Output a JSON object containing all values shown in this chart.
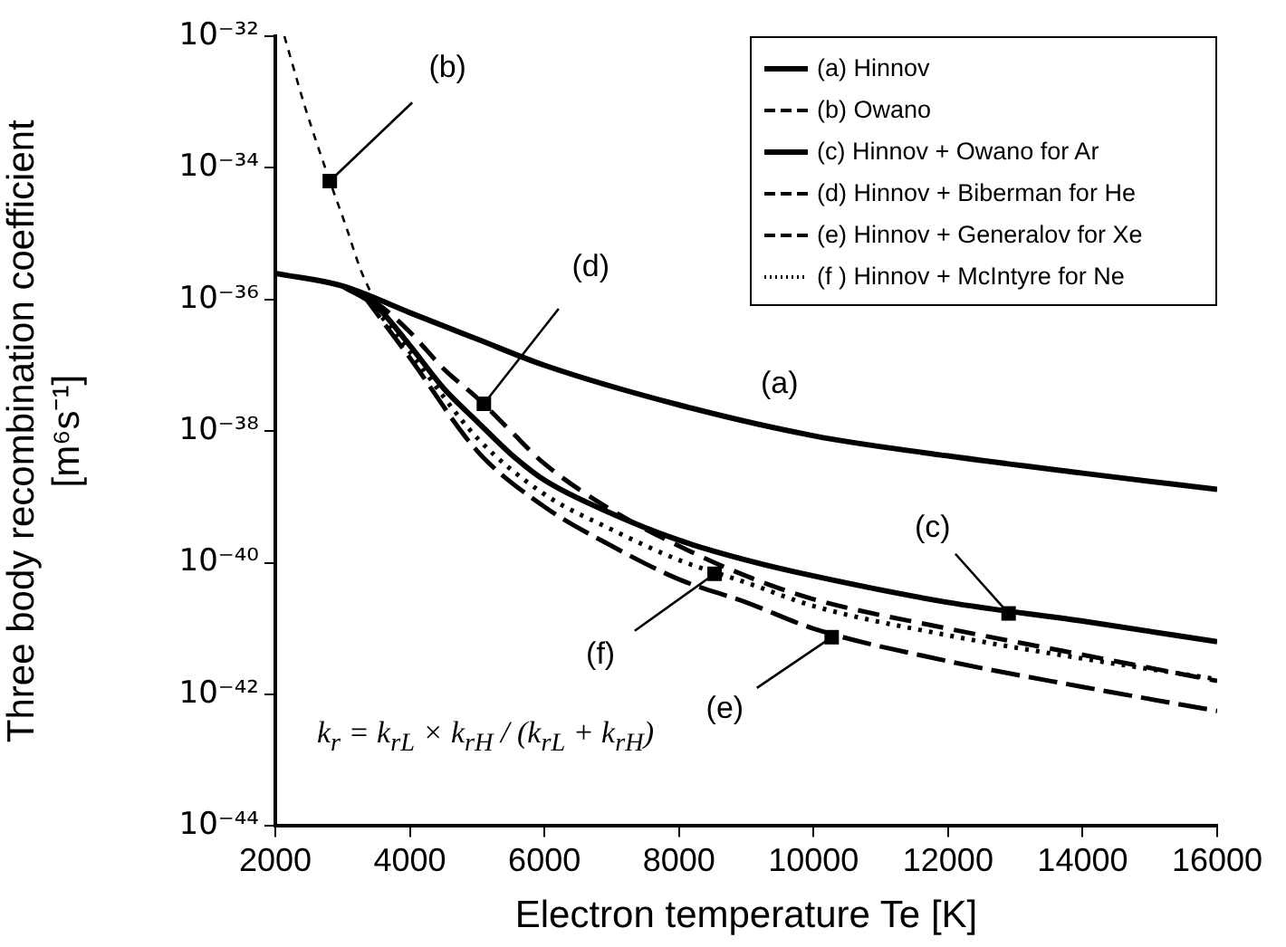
{
  "chart_data": {
    "type": "line",
    "xlabel": "Electron temperature Te [K]",
    "ylabel": "Three body recombination coefficient\n[m⁶s⁻¹]",
    "xlim": [
      2000,
      16000
    ],
    "xticks": [
      2000,
      4000,
      6000,
      8000,
      10000,
      12000,
      14000,
      16000
    ],
    "ylim": [
      1e-44,
      1e-32
    ],
    "yticks": [
      {
        "value": 1e-44,
        "label": "10⁻⁴⁴"
      },
      {
        "value": 1e-42,
        "label": "10⁻⁴²"
      },
      {
        "value": 1e-40,
        "label": "10⁻⁴⁰"
      },
      {
        "value": 1e-38,
        "label": "10⁻³⁸"
      },
      {
        "value": 1e-36,
        "label": "10⁻³⁶"
      },
      {
        "value": 1e-34,
        "label": "10⁻³⁴"
      },
      {
        "value": 1e-32,
        "label": "10⁻³²"
      }
    ],
    "log": "y",
    "grid": false,
    "legend": "top right",
    "marker": "none",
    "series": [
      {
        "name": "(a) Hinnov",
        "color": "#000000",
        "line_style": "solid",
        "x": [
          2000,
          3000,
          4000,
          5000,
          6000,
          8000,
          10000,
          12000,
          14000,
          16000
        ],
        "values": [
          2.5e-36,
          1.6e-36,
          6.3e-37,
          2.5e-37,
          1e-37,
          2.5e-38,
          8.5e-39,
          4.2e-39,
          2.3e-39,
          1.3e-39
        ]
      },
      {
        "name": "(b) Owano",
        "color": "#000000",
        "line_style": "dashed",
        "x": [
          2135,
          2450,
          2810,
          3050,
          3270,
          3450
        ],
        "values": [
          1e-32,
          7.9e-34,
          6.3e-35,
          1.3e-35,
          2.8e-36,
          1.1e-36
        ]
      },
      {
        "name": "(c) Hinnov + Owano for Ar",
        "color": "#000000",
        "line_style": "solid",
        "x": [
          3000,
          3500,
          4000,
          4500,
          5000,
          5500,
          6000,
          7000,
          8000,
          9000,
          10000,
          12000,
          14000,
          16000
        ],
        "values": [
          1.6e-36,
          7.9e-37,
          2e-37,
          4.5e-38,
          1.4e-38,
          4.5e-39,
          1.8e-39,
          5.6e-40,
          2.2e-40,
          1.1e-40,
          6.3e-41,
          2.5e-41,
          1.3e-41,
          6.3e-42
        ]
      },
      {
        "name": "(d) Hinnov + Biberman for He",
        "color": "#000000",
        "line_style": "dashed",
        "x": [
          3000,
          3500,
          4000,
          4500,
          5000,
          5500,
          6000,
          7000,
          8000,
          9000,
          10000,
          12000,
          14000,
          16000
        ],
        "values": [
          1.6e-36,
          8.9e-37,
          3.2e-37,
          8.9e-38,
          3.2e-38,
          1e-38,
          3.2e-39,
          6.3e-40,
          1.8e-40,
          6.3e-41,
          2.8e-41,
          1e-41,
          4e-42,
          1.6e-42
        ]
      },
      {
        "name": "(e) Hinnov + Generalov for Xe",
        "color": "#000000",
        "line_style": "dashed",
        "x": [
          3300,
          3500,
          4000,
          5000,
          6000,
          7000,
          8000,
          9000,
          10000,
          12000,
          14000,
          16000
        ],
        "values": [
          1.2e-36,
          6.3e-37,
          1.3e-37,
          5e-39,
          7.1e-40,
          1.8e-40,
          5.6e-41,
          2.5e-41,
          1e-41,
          3.2e-42,
          1.3e-42,
          5.6e-43
        ]
      },
      {
        "name": "(f ) Hinnov + McIntyre for Ne",
        "color": "#000000",
        "line_style": "dotted",
        "x": [
          3400,
          3500,
          4000,
          5000,
          6000,
          7000,
          8000,
          9000,
          10000,
          12000,
          14000,
          16000
        ],
        "values": [
          1e-36,
          7.1e-37,
          1.6e-37,
          7.9e-39,
          1.1e-39,
          3.2e-40,
          1.1e-40,
          5e-41,
          2.2e-41,
          7.9e-42,
          3.5e-42,
          1.7e-42
        ]
      }
    ],
    "annotations": [
      "(a)",
      {
        "text": "(b)",
        "x": 2810,
        "y": 6.3e-35
      },
      {
        "text": "(c)",
        "x": 12900,
        "y": 1.7e-41
      },
      {
        "text": "(d)",
        "x": 5100,
        "y": 2.6e-38
      },
      {
        "text": "(e)",
        "x": 10270,
        "y": 7.4e-42
      },
      {
        "text": "(f)",
        "x": 8530,
        "y": 6.8e-41
      },
      "k$_{r}$ = k$_{rL}$ × k$_{rH}$ / (k$_{rL}$ + k$_{rH}$)"
    ]
  }
}
